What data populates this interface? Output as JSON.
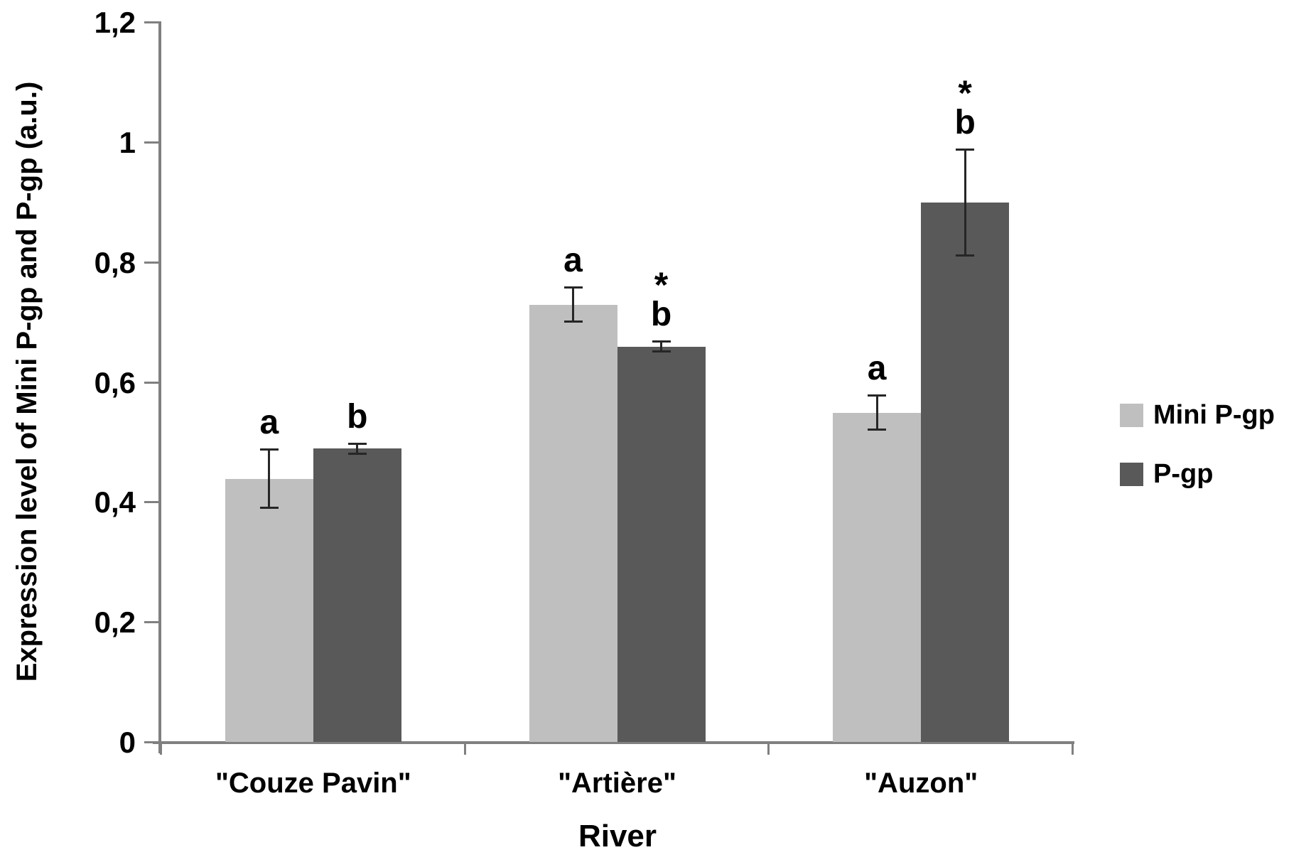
{
  "chart_data": {
    "type": "bar",
    "title": "",
    "xlabel": "River",
    "ylabel": "Expression level of Mini P-gp and P-gp (a.u.)",
    "categories": [
      "\"Couze Pavin\"",
      "\"Artière\"",
      "\"Auzon\""
    ],
    "series": [
      {
        "name": "Mini P-gp",
        "color": "#bfbfbf",
        "values": [
          0.44,
          0.73,
          0.55
        ],
        "errors": [
          0.05,
          0.03,
          0.03
        ],
        "sig": [
          {
            "letter": "a",
            "star": false
          },
          {
            "letter": "a",
            "star": false
          },
          {
            "letter": "a",
            "star": false
          }
        ]
      },
      {
        "name": "P-gp",
        "color": "#595959",
        "values": [
          0.49,
          0.66,
          0.9
        ],
        "errors": [
          0.01,
          0.01,
          0.09
        ],
        "sig": [
          {
            "letter": "b",
            "star": false
          },
          {
            "letter": "b",
            "star": true
          },
          {
            "letter": "b",
            "star": true
          }
        ]
      }
    ],
    "ylim": [
      0,
      1.2
    ],
    "yticks": [
      {
        "label": "0",
        "value": 0
      },
      {
        "label": "0,2",
        "value": 0.2
      },
      {
        "label": "0,4",
        "value": 0.4
      },
      {
        "label": "0,6",
        "value": 0.6
      },
      {
        "label": "0,8",
        "value": 0.8
      },
      {
        "label": "1",
        "value": 1.0
      },
      {
        "label": "1,2",
        "value": 1.2
      }
    ],
    "decimal_separator": ",",
    "grid": false,
    "legend_position": "right",
    "axis_color": "#808080",
    "error_bar_color": "#262626",
    "text_color": "#000000"
  }
}
